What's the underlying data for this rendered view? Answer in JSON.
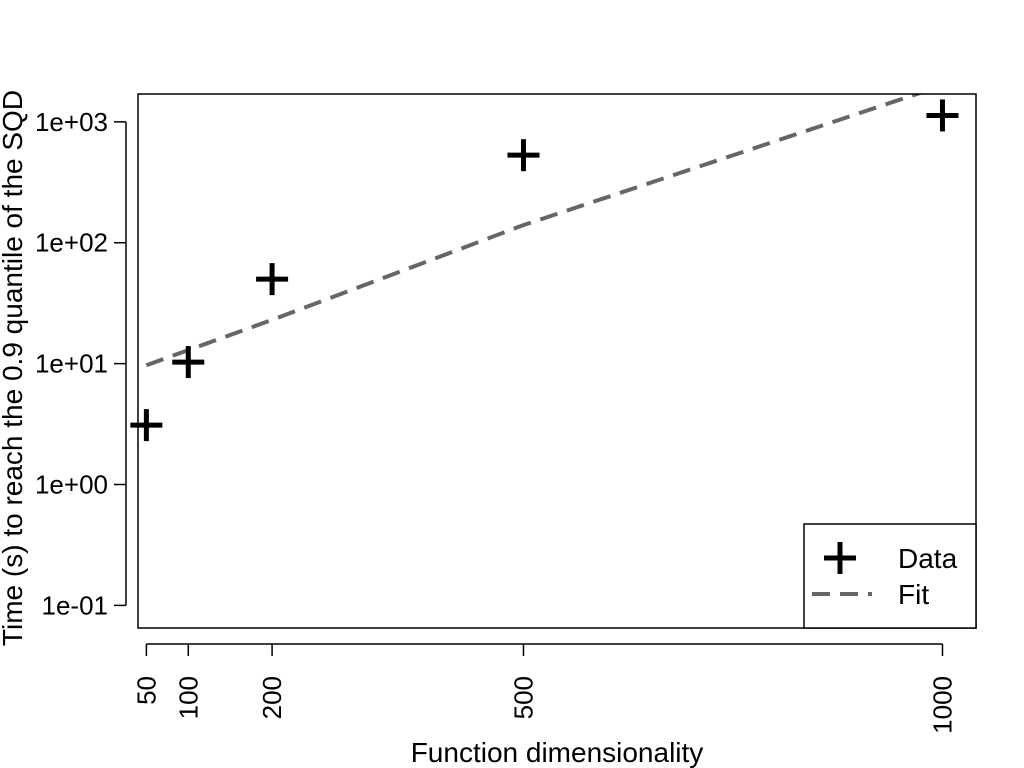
{
  "chart_data": {
    "type": "scatter",
    "xlabel": "Function dimensionality",
    "ylabel": "Time (s) to reach the 0.9 quantile of the SQD",
    "x_ticks": [
      50,
      100,
      200,
      500,
      1000
    ],
    "y_scale": "log",
    "y_ticks": [
      0.1,
      1,
      10,
      100,
      1000
    ],
    "y_tick_labels": [
      "1e-01",
      "1e+00",
      "1e+01",
      "1e+02",
      "1e+03"
    ],
    "xlim": [
      40,
      1040
    ],
    "ylim": [
      0.065,
      1700
    ],
    "grid": false,
    "legend_position": "bottom-right",
    "series": [
      {
        "name": "Data",
        "kind": "points",
        "marker": "plus",
        "color": "#000000",
        "points": [
          {
            "x": 50,
            "y": 3.1
          },
          {
            "x": 100,
            "y": 10.3
          },
          {
            "x": 200,
            "y": 50
          },
          {
            "x": 500,
            "y": 530
          },
          {
            "x": 1000,
            "y": 1130
          }
        ]
      },
      {
        "name": "Fit",
        "kind": "line",
        "style": "dashed",
        "color": "#666666",
        "x_from": 50,
        "x_to": 1000,
        "model": "power",
        "points": [
          {
            "x": 50,
            "y": 9.7
          },
          {
            "x": 200,
            "y": 23
          },
          {
            "x": 500,
            "y": 140
          },
          {
            "x": 1000,
            "y": 2000
          }
        ]
      }
    ]
  }
}
